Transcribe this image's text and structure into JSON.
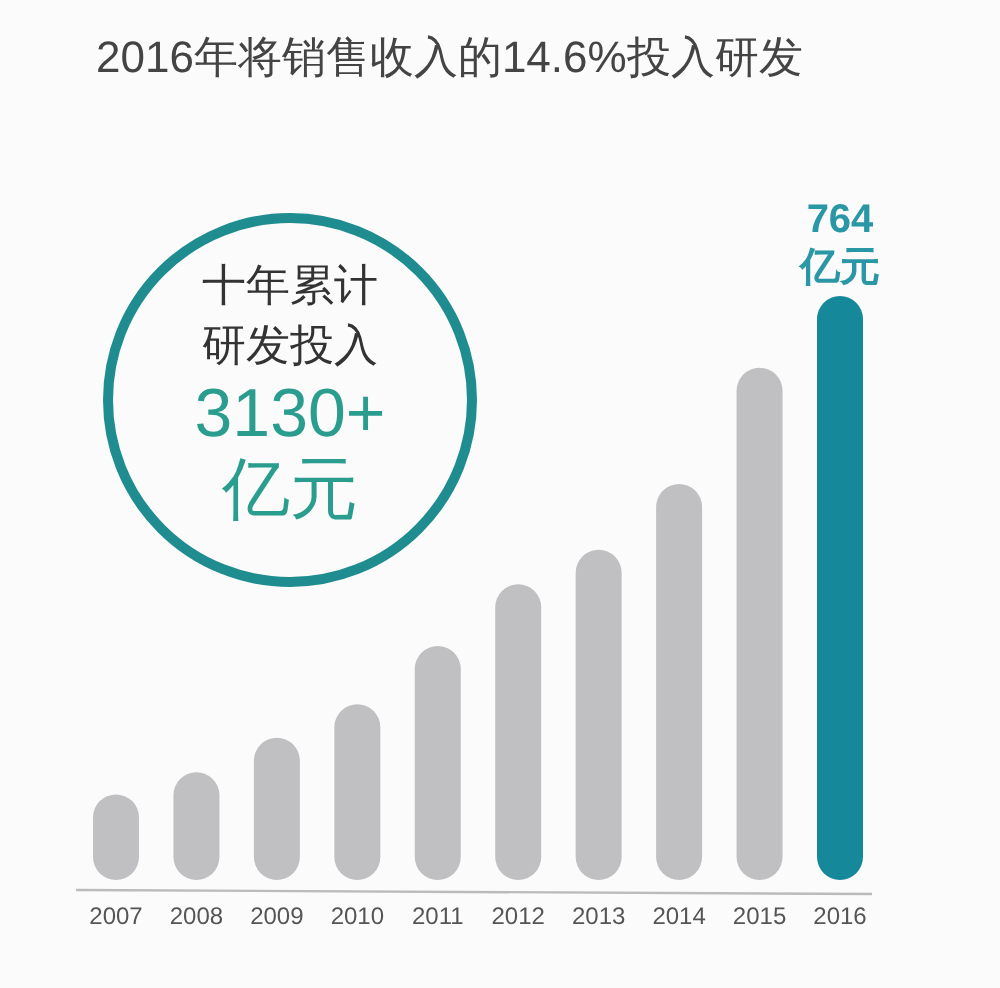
{
  "chart_data": {
    "type": "bar",
    "title": "2016年将销售收入的14.6%投入研发",
    "categories": [
      "2007",
      "2008",
      "2009",
      "2010",
      "2011",
      "2012",
      "2013",
      "2014",
      "2015",
      "2016"
    ],
    "values": [
      112,
      141,
      186,
      230,
      306,
      387,
      432,
      518,
      670,
      764
    ],
    "colors": [
      "#c0c0c2",
      "#c0c0c2",
      "#c0c0c2",
      "#c0c0c2",
      "#c0c0c2",
      "#c0c0c2",
      "#c0c0c2",
      "#c0c0c2",
      "#c0c0c2",
      "#15899a"
    ],
    "value_labels": [
      null,
      null,
      null,
      null,
      null,
      null,
      null,
      null,
      null,
      "764 亿元"
    ],
    "annotations": [
      "十年累计",
      "研发投入",
      "3130+",
      "亿元"
    ]
  }
}
